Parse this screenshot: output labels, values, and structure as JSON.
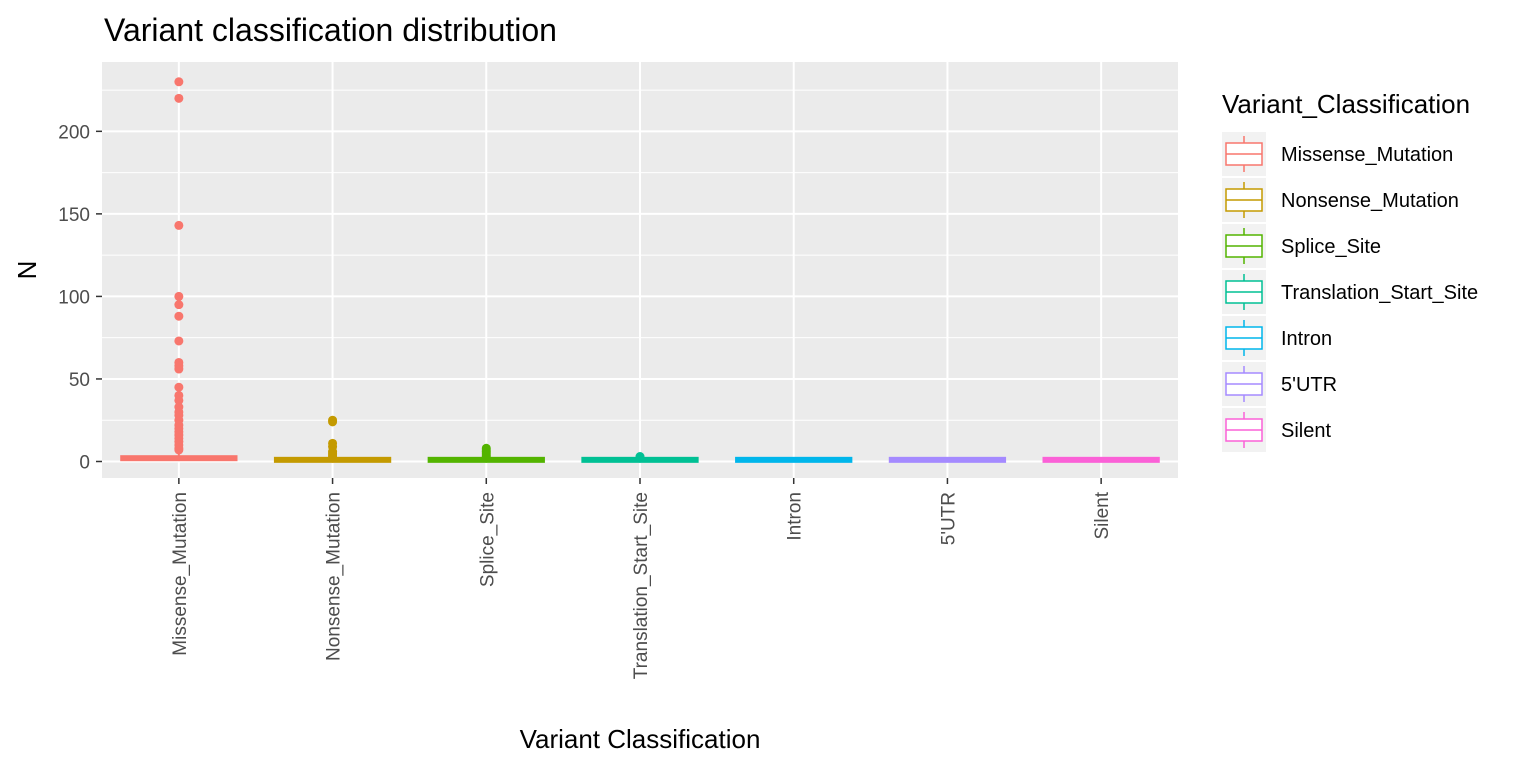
{
  "chart_data": {
    "type": "boxplot",
    "title": "Variant classification distribution",
    "xlabel": "Variant Classification",
    "ylabel": "N",
    "ylim": [
      -10,
      242
    ],
    "yticks": [
      0,
      50,
      100,
      150,
      200
    ],
    "grid": true,
    "legend": {
      "title": "Variant_Classification",
      "position": "right"
    },
    "categories": [
      "Missense_Mutation",
      "Nonsense_Mutation",
      "Splice_Site",
      "Translation_Start_Site",
      "Intron",
      "5'UTR",
      "Silent"
    ],
    "series": [
      {
        "name": "Missense_Mutation",
        "color": "#F8766D",
        "q1": 1,
        "median": 2,
        "q3": 3,
        "whisker_low": 1,
        "whisker_high": 6,
        "outliers": [
          230,
          220,
          143,
          100,
          95,
          88,
          73,
          60,
          58,
          56,
          45,
          40,
          37,
          33,
          30,
          28,
          25,
          22,
          20,
          18,
          16,
          14,
          12,
          10,
          8,
          7
        ]
      },
      {
        "name": "Nonsense_Mutation",
        "color": "#C49A00",
        "q1": 1,
        "median": 1,
        "q3": 1,
        "whisker_low": 1,
        "whisker_high": 1,
        "outliers": [
          25,
          24,
          11,
          9,
          6,
          5,
          4,
          3,
          2
        ]
      },
      {
        "name": "Splice_Site",
        "color": "#53B400",
        "q1": 1,
        "median": 1,
        "q3": 1,
        "whisker_low": 1,
        "whisker_high": 1,
        "outliers": [
          8,
          7,
          6,
          5,
          4,
          3,
          2
        ]
      },
      {
        "name": "Translation_Start_Site",
        "color": "#00C094",
        "q1": 1,
        "median": 1,
        "q3": 1,
        "whisker_low": 1,
        "whisker_high": 1,
        "outliers": [
          3,
          2
        ]
      },
      {
        "name": "Intron",
        "color": "#00B6EB",
        "q1": 1,
        "median": 1,
        "q3": 1,
        "whisker_low": 1,
        "whisker_high": 1,
        "outliers": []
      },
      {
        "name": "5'UTR",
        "color": "#A58AFF",
        "q1": 1,
        "median": 1,
        "q3": 1,
        "whisker_low": 1,
        "whisker_high": 1,
        "outliers": []
      },
      {
        "name": "Silent",
        "color": "#FB61D7",
        "q1": 1,
        "median": 1,
        "q3": 1,
        "whisker_low": 1,
        "whisker_high": 1,
        "outliers": []
      }
    ]
  }
}
